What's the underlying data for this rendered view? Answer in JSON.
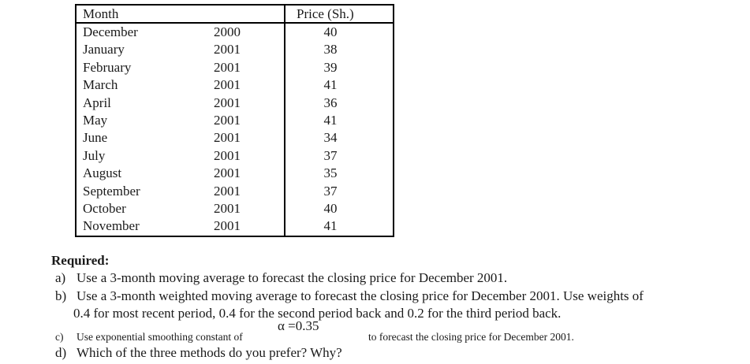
{
  "page": {
    "background": "#ffffff",
    "text_color": "#1a1a1a",
    "border_color": "#000000"
  },
  "table": {
    "header": {
      "month": "Month",
      "price": "Price (Sh.)"
    },
    "rows": [
      {
        "month": "December",
        "year": "2000",
        "price": "40"
      },
      {
        "month": "January",
        "year": "2001",
        "price": "38"
      },
      {
        "month": "February",
        "year": "2001",
        "price": "39"
      },
      {
        "month": "March",
        "year": "2001",
        "price": "41"
      },
      {
        "month": "April",
        "year": "2001",
        "price": "36"
      },
      {
        "month": "May",
        "year": "2001",
        "price": "41"
      },
      {
        "month": "June",
        "year": "2001",
        "price": "34"
      },
      {
        "month": "July",
        "year": "2001",
        "price": "37"
      },
      {
        "month": "August",
        "year": "2001",
        "price": "35"
      },
      {
        "month": "September",
        "year": "2001",
        "price": "37"
      },
      {
        "month": "October",
        "year": "2001",
        "price": "40"
      },
      {
        "month": "November",
        "year": "2001",
        "price": "41"
      }
    ]
  },
  "required": {
    "heading": "Required:",
    "item_a": {
      "letter": "a)",
      "text": "Use a 3-month moving average to forecast the closing price for December 2001."
    },
    "item_b": {
      "letter": "b)",
      "line1": "Use a 3-month weighted moving average to forecast the closing price for December 2001. Use weights of",
      "line2": "0.4 for most recent period, 0.4 for the second period back and 0.2 for the third period back."
    },
    "item_c": {
      "letter": "c)",
      "text_before": "Use exponential smoothing constant of",
      "alpha_value": "α =0.35",
      "text_after": "to forecast the closing price for December 2001."
    },
    "item_d": {
      "letter": "d)",
      "text": "Which of the three methods do you prefer? Why?"
    }
  }
}
